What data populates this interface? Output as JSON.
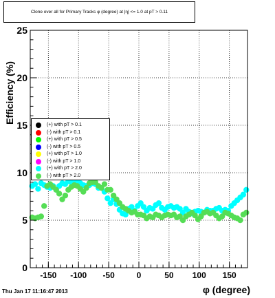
{
  "chart_data": {
    "type": "scatter",
    "title": "Clone  over all for Primary Tracks φ (degree) at |η| <= 1.0 at pT > 0.11",
    "xlabel": "φ (degree)",
    "ylabel": "Efficiency (%)",
    "xlim": [
      -180,
      180
    ],
    "ylim": [
      0,
      25
    ],
    "x_ticks": [
      "-150",
      "-100",
      "-50",
      "0",
      "50",
      "100",
      "150"
    ],
    "y_ticks": [
      "0",
      "5",
      "10",
      "15",
      "20",
      "25"
    ],
    "grid": true,
    "legend_position": "left-middle",
    "series": [
      {
        "name": "(+) with pT > 0.1",
        "color": "#000000",
        "points": []
      },
      {
        "name": "(-) with pT > 0.1",
        "color": "#ff0000",
        "points": []
      },
      {
        "name": "(+) with pT > 0.5",
        "color": "#00ff00",
        "points": []
      },
      {
        "name": "(-) with pT > 0.5",
        "color": "#0000ff",
        "points": []
      },
      {
        "name": "(+) with pT > 1.0",
        "color": "#ffff00",
        "points": []
      },
      {
        "name": "(-) with pT > 1.0",
        "color": "#ff00ff",
        "points": []
      },
      {
        "name": "(+) with pT > 2.0",
        "color": "#00ffff",
        "points": [
          [
            -177,
            8.6
          ],
          [
            -172,
            8.8
          ],
          [
            -167,
            8.3
          ],
          [
            -162,
            8.9
          ],
          [
            -157,
            8.7
          ],
          [
            -152,
            8.5
          ],
          [
            -147,
            8.4
          ],
          [
            -142,
            8.6
          ],
          [
            -137,
            8.2
          ],
          [
            -132,
            8.6
          ],
          [
            -127,
            8.9
          ],
          [
            -122,
            8.8
          ],
          [
            -117,
            9.1
          ],
          [
            -112,
            9.0
          ],
          [
            -107,
            8.9
          ],
          [
            -102,
            9.2
          ],
          [
            -97,
            8.9
          ],
          [
            -92,
            8.7
          ],
          [
            -87,
            8.6
          ],
          [
            -82,
            8.7
          ],
          [
            -77,
            8.9
          ],
          [
            -72,
            8.8
          ],
          [
            -67,
            8.4
          ],
          [
            -62,
            8.4
          ],
          [
            -57,
            8.0
          ],
          [
            -52,
            7.3
          ],
          [
            -47,
            6.8
          ],
          [
            -42,
            7.2
          ],
          [
            -37,
            6.7
          ],
          [
            -32,
            6.1
          ],
          [
            -27,
            5.7
          ],
          [
            -22,
            5.6
          ],
          [
            -17,
            6.2
          ],
          [
            -12,
            6.4
          ],
          [
            -7,
            6.0
          ],
          [
            -2,
            6.5
          ],
          [
            3,
            6.8
          ],
          [
            8,
            6.4
          ],
          [
            13,
            6.0
          ],
          [
            18,
            6.3
          ],
          [
            23,
            6.2
          ],
          [
            28,
            6.6
          ],
          [
            33,
            6.8
          ],
          [
            38,
            6.3
          ],
          [
            43,
            6.1
          ],
          [
            48,
            6.4
          ],
          [
            53,
            6.5
          ],
          [
            58,
            6.3
          ],
          [
            63,
            6.4
          ],
          [
            68,
            6.2
          ],
          [
            73,
            5.8
          ],
          [
            78,
            6.2
          ],
          [
            83,
            5.9
          ],
          [
            88,
            5.7
          ],
          [
            93,
            5.9
          ],
          [
            98,
            6.0
          ],
          [
            103,
            5.9
          ],
          [
            108,
            5.8
          ],
          [
            113,
            6.1
          ],
          [
            118,
            6.0
          ],
          [
            123,
            6.0
          ],
          [
            128,
            6.2
          ],
          [
            133,
            6.3
          ],
          [
            138,
            6.0
          ],
          [
            143,
            6.1
          ],
          [
            148,
            6.0
          ],
          [
            153,
            6.5
          ],
          [
            158,
            6.8
          ],
          [
            163,
            7.1
          ],
          [
            168,
            7.4
          ],
          [
            173,
            7.7
          ],
          [
            178,
            8.2
          ]
        ]
      },
      {
        "name": "(-) with pT > 2.0",
        "color": "#55dd55",
        "points": [
          [
            -177,
            5.3
          ],
          [
            -172,
            5.2
          ],
          [
            -167,
            5.3
          ],
          [
            -162,
            5.4
          ],
          [
            -157,
            6.5
          ],
          [
            -152,
            8.6
          ],
          [
            -147,
            8.8
          ],
          [
            -142,
            8.5
          ],
          [
            -137,
            8.2
          ],
          [
            -132,
            7.8
          ],
          [
            -127,
            7.2
          ],
          [
            -122,
            7.6
          ],
          [
            -117,
            8.2
          ],
          [
            -112,
            8.5
          ],
          [
            -107,
            8.7
          ],
          [
            -102,
            8.6
          ],
          [
            -97,
            8.3
          ],
          [
            -92,
            8.0
          ],
          [
            -87,
            8.4
          ],
          [
            -82,
            8.9
          ],
          [
            -77,
            9.0
          ],
          [
            -72,
            9.0
          ],
          [
            -67,
            8.6
          ],
          [
            -62,
            8.4
          ],
          [
            -57,
            8.8
          ],
          [
            -52,
            8.2
          ],
          [
            -47,
            8.2
          ],
          [
            -42,
            7.6
          ],
          [
            -37,
            7.2
          ],
          [
            -32,
            6.8
          ],
          [
            -27,
            6.4
          ],
          [
            -22,
            6.2
          ],
          [
            -17,
            6.0
          ],
          [
            -12,
            5.8
          ],
          [
            -7,
            5.9
          ],
          [
            -2,
            5.6
          ],
          [
            3,
            5.6
          ],
          [
            8,
            5.5
          ],
          [
            13,
            5.2
          ],
          [
            18,
            5.4
          ],
          [
            23,
            5.3
          ],
          [
            28,
            5.6
          ],
          [
            33,
            5.5
          ],
          [
            38,
            5.3
          ],
          [
            43,
            5.5
          ],
          [
            48,
            5.6
          ],
          [
            53,
            5.5
          ],
          [
            58,
            5.6
          ],
          [
            63,
            5.3
          ],
          [
            68,
            5.4
          ],
          [
            73,
            5.0
          ],
          [
            78,
            5.4
          ],
          [
            83,
            5.6
          ],
          [
            88,
            5.8
          ],
          [
            93,
            5.5
          ],
          [
            98,
            5.1
          ],
          [
            103,
            5.4
          ],
          [
            108,
            5.8
          ],
          [
            113,
            5.9
          ],
          [
            118,
            5.7
          ],
          [
            123,
            5.8
          ],
          [
            128,
            5.5
          ],
          [
            133,
            5.2
          ],
          [
            138,
            5.4
          ],
          [
            143,
            5.8
          ],
          [
            148,
            5.7
          ],
          [
            153,
            5.5
          ],
          [
            158,
            5.3
          ],
          [
            163,
            5.2
          ],
          [
            168,
            5.0
          ],
          [
            173,
            5.6
          ],
          [
            178,
            5.8
          ]
        ]
      }
    ]
  },
  "footer": {
    "timestamp": "Thu Jan 17 11:16:47 2013"
  }
}
